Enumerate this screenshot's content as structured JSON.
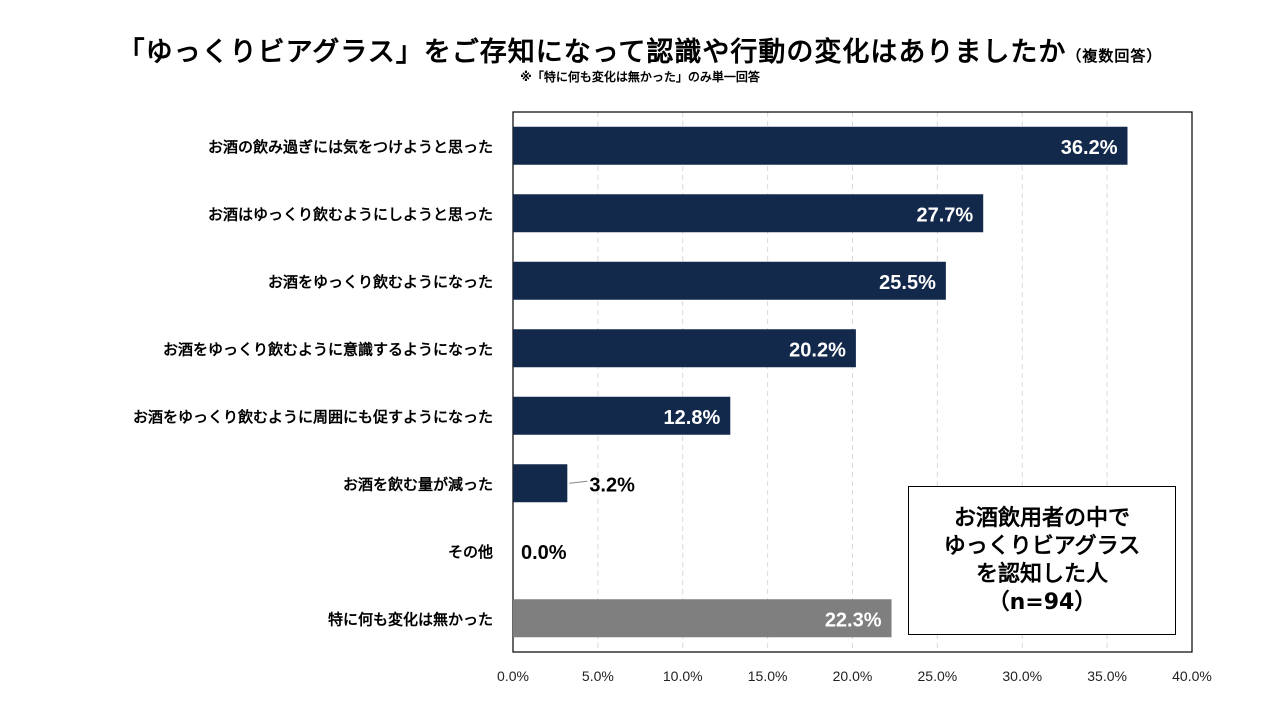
{
  "title": "「ゆっくりビアグラス」をご存知になって認識や行動の変化はありましたか",
  "title_suffix": "（複数回答）",
  "note": "※「特に何も変化は無かった」のみ単一回答",
  "callout": {
    "lines": [
      "お酒飲用者の中で",
      "ゆっくりビアグラス",
      "を認知した人",
      "（n=94）"
    ]
  },
  "colors": {
    "primary": "#13294b",
    "other": "#7f7f7f",
    "grid": "#d9d9d9"
  },
  "chart_data": {
    "type": "bar",
    "orientation": "horizontal",
    "categories": [
      "お酒の飲み過ぎには気をつけようと思った",
      "お酒はゆっくり飲むようにしようと思った",
      "お酒をゆっくり飲むようになった",
      "お酒をゆっくり飲むように意識するようになった",
      "お酒をゆっくり飲むように周囲にも促すようになった",
      "お酒を飲む量が減った",
      "その他",
      "特に何も変化は無かった"
    ],
    "values": [
      36.2,
      27.7,
      25.5,
      20.2,
      12.8,
      3.2,
      0.0,
      22.3
    ],
    "data_labels": [
      "36.2%",
      "27.7%",
      "25.5%",
      "20.2%",
      "12.8%",
      "3.2%",
      "0.0%",
      "22.3%"
    ],
    "xlim": [
      0,
      40
    ],
    "xticks": [
      "0.0%",
      "5.0%",
      "10.0%",
      "15.0%",
      "20.0%",
      "25.0%",
      "30.0%",
      "35.0%",
      "40.0%"
    ],
    "grid": true,
    "unit": "%"
  }
}
